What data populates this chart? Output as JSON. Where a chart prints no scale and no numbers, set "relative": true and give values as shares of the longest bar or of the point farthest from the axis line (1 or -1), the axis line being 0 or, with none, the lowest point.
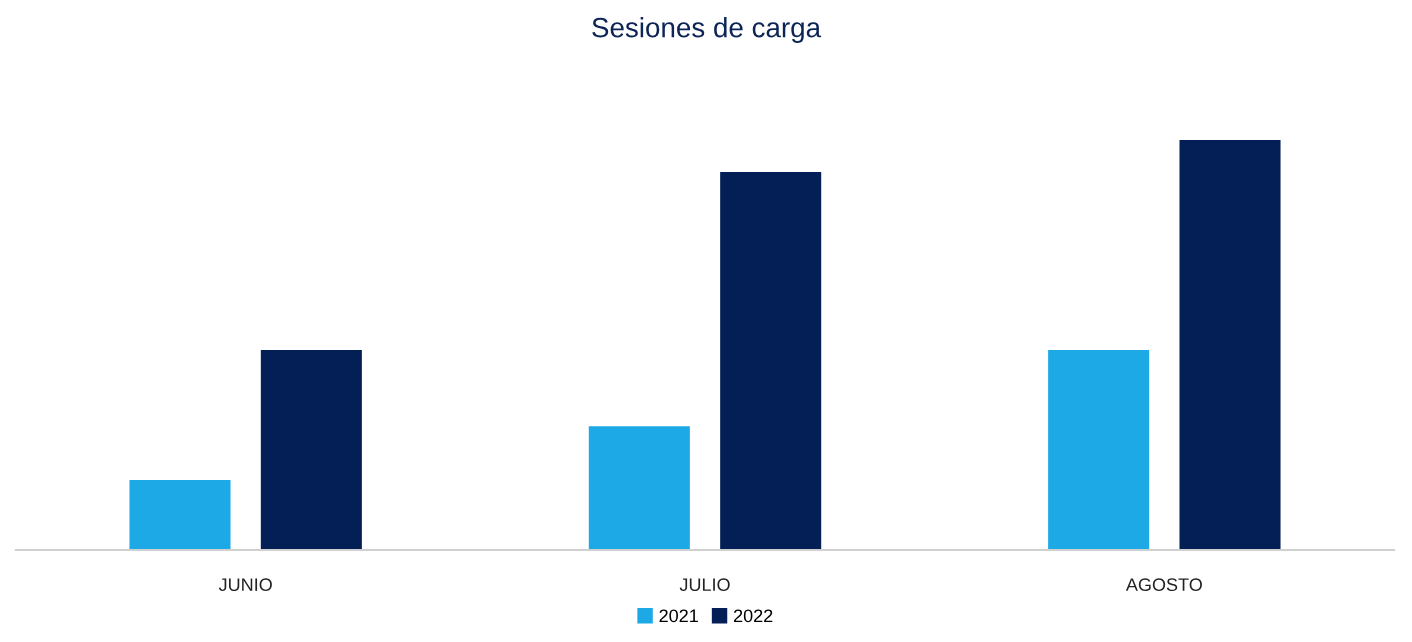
{
  "chart_data": {
    "type": "bar",
    "title": "Sesiones de carga",
    "relative": true,
    "categories": [
      "JUNIO",
      "JULIO",
      "AGOSTO"
    ],
    "series": [
      {
        "name": "2021",
        "color": "#1ca9e6",
        "values": [
          0.171,
          0.302,
          0.488
        ]
      },
      {
        "name": "2022",
        "color": "#041e56",
        "values": [
          0.488,
          0.922,
          1
        ]
      }
    ],
    "legend": "bottom",
    "grid": false
  }
}
